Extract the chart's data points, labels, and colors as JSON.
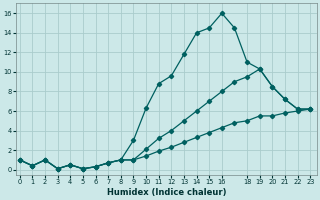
{
  "xlabel": "Humidex (Indice chaleur)",
  "ylabel": "",
  "background_color": "#cce8e8",
  "grid_color": "#aacccc",
  "line_color": "#006060",
  "x_ticks": [
    0,
    1,
    2,
    3,
    4,
    5,
    6,
    7,
    8,
    9,
    10,
    11,
    12,
    13,
    14,
    15,
    16,
    18,
    19,
    20,
    21,
    22,
    23
  ],
  "ylim": [
    -0.5,
    17
  ],
  "xlim": [
    -0.3,
    23.5
  ],
  "series1_x": [
    0,
    1,
    2,
    3,
    4,
    5,
    6,
    7,
    8,
    9,
    10,
    11,
    12,
    13,
    14,
    15,
    16,
    17,
    18,
    19,
    20,
    21,
    22,
    23
  ],
  "series1_y": [
    1.0,
    0.4,
    1.0,
    0.1,
    0.5,
    0.1,
    0.3,
    0.7,
    1.0,
    3.0,
    6.3,
    8.8,
    9.6,
    11.8,
    14.0,
    14.5,
    16.0,
    14.5,
    11.0,
    10.3,
    8.5,
    7.2,
    6.2,
    6.2
  ],
  "series2_x": [
    0,
    1,
    2,
    3,
    4,
    5,
    6,
    7,
    8,
    9,
    10,
    11,
    12,
    13,
    14,
    15,
    16,
    17,
    18,
    19,
    20,
    21,
    22,
    23
  ],
  "series2_y": [
    1.0,
    0.4,
    1.0,
    0.1,
    0.5,
    0.1,
    0.3,
    0.7,
    1.0,
    1.0,
    2.1,
    3.2,
    4.0,
    5.0,
    6.0,
    7.0,
    8.0,
    9.0,
    9.5,
    10.3,
    8.5,
    7.2,
    6.2,
    6.2
  ],
  "series3_x": [
    0,
    1,
    2,
    3,
    4,
    5,
    6,
    7,
    8,
    9,
    10,
    11,
    12,
    13,
    14,
    15,
    16,
    17,
    18,
    19,
    20,
    21,
    22,
    23
  ],
  "series3_y": [
    1.0,
    0.4,
    1.0,
    0.1,
    0.5,
    0.1,
    0.3,
    0.7,
    1.0,
    1.0,
    1.4,
    1.9,
    2.3,
    2.8,
    3.3,
    3.8,
    4.3,
    4.8,
    5.0,
    5.5,
    5.5,
    5.8,
    6.0,
    6.2
  ],
  "yticks": [
    0,
    2,
    4,
    6,
    8,
    10,
    12,
    14,
    16
  ],
  "ytick_labels": [
    "0",
    "2",
    "4",
    "6",
    "8",
    "10",
    "12",
    "14",
    "16"
  ]
}
